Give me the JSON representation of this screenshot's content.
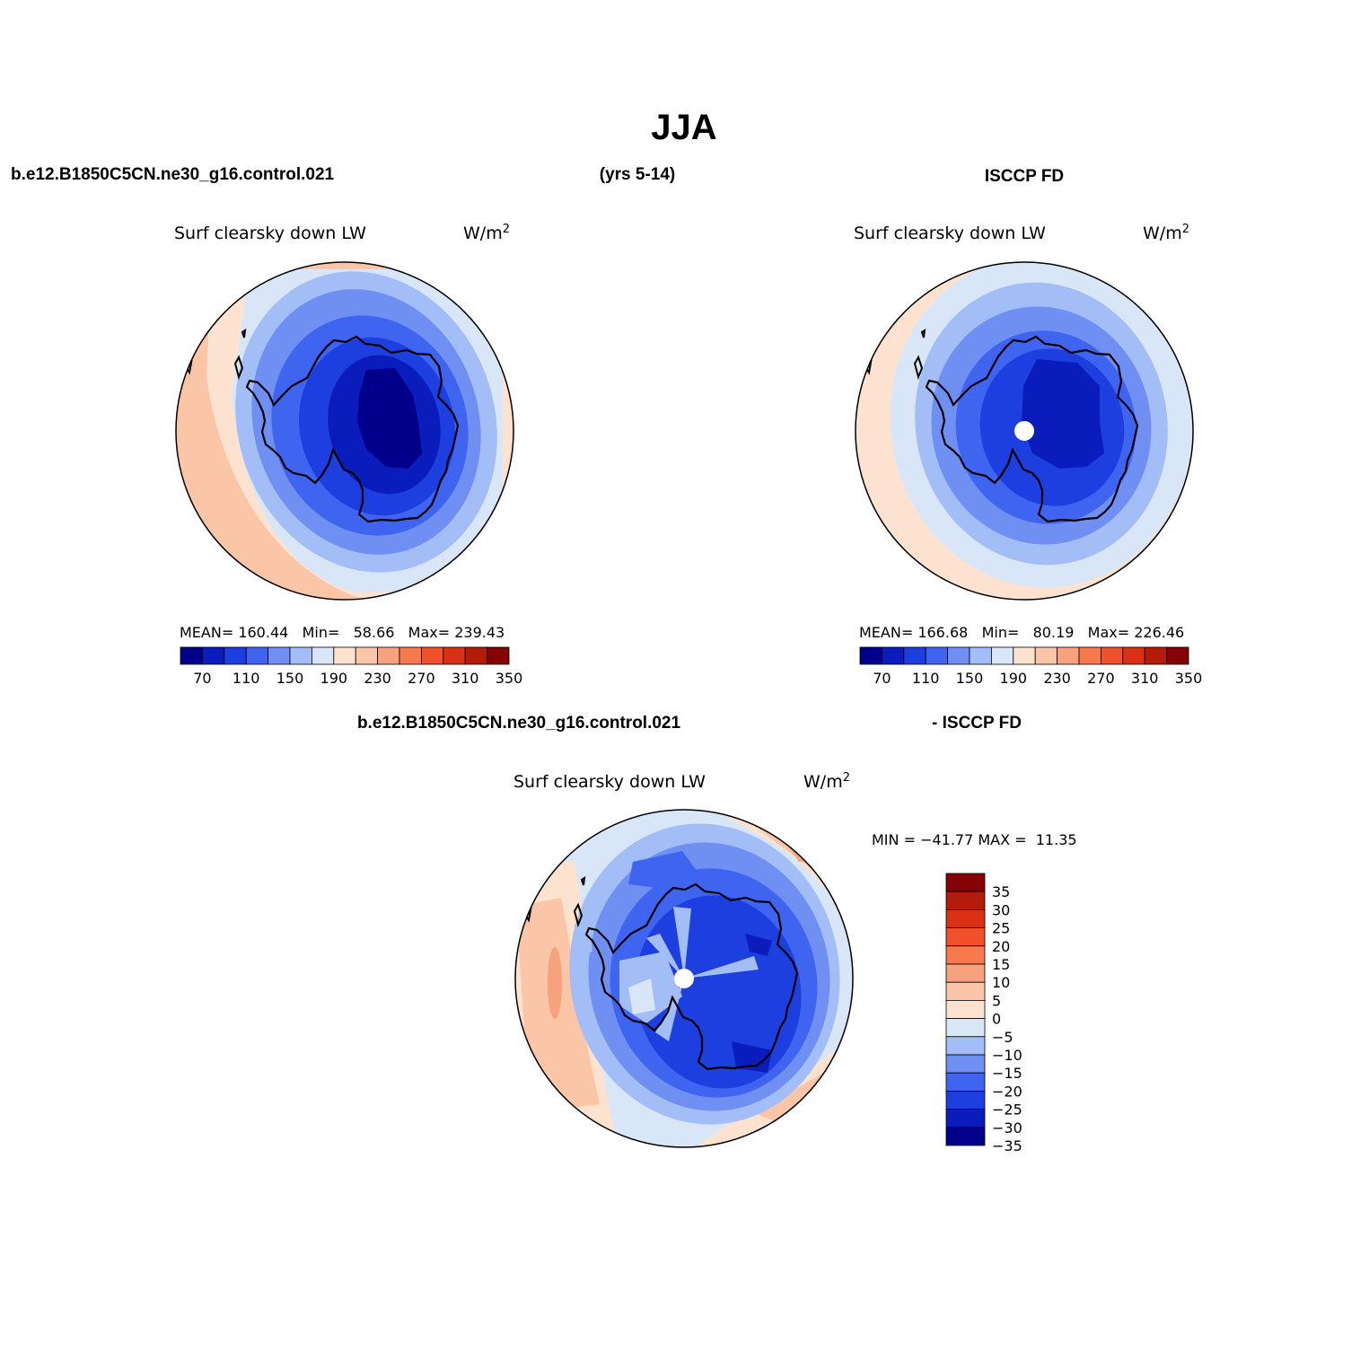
{
  "chart_data": {
    "type": "polar_contour_maps",
    "title": "JJA",
    "header": {
      "left": "b.e12.B1850C5CN.ne30_g16.control.021",
      "center": "(yrs 5-14)",
      "right": "ISCCP FD"
    },
    "diff_header": {
      "left": "b.e12.B1850C5CN.ne30_g16.control.021",
      "right": "- ISCCP FD"
    },
    "panels": [
      {
        "id": "model",
        "variable": "Surf clearsky down LW",
        "units": "W/m",
        "units_exponent": "2",
        "stats_text": "MEAN= 160.44   Min=   58.66   Max= 239.43",
        "stats": {
          "mean": 160.44,
          "min": 58.66,
          "max": 239.43
        }
      },
      {
        "id": "obs",
        "variable": "Surf clearsky down LW",
        "units": "W/m",
        "units_exponent": "2",
        "stats_text": "MEAN= 166.68   Min=   80.19   Max= 226.46",
        "stats": {
          "mean": 166.68,
          "min": 80.19,
          "max": 226.46
        }
      },
      {
        "id": "diff",
        "variable": "Surf clearsky down LW",
        "units": "W/m",
        "units_exponent": "2",
        "stats_text": "MIN = −41.77 MAX =  11.35",
        "stats": {
          "min": -41.77,
          "max": 11.35
        }
      }
    ],
    "colorbar_main": {
      "levels": [
        70,
        90,
        110,
        130,
        150,
        170,
        190,
        210,
        230,
        250,
        270,
        290,
        310,
        330,
        350
      ],
      "labels": [
        "70",
        "110",
        "150",
        "190",
        "230",
        "270",
        "310",
        "350"
      ],
      "colors": [
        "#00008a",
        "#0a1dbc",
        "#1d3fe0",
        "#3f65f0",
        "#6f8ff2",
        "#a3bdf7",
        "#d8e6f8",
        "#fde3cf",
        "#fbc5a7",
        "#f8a17f",
        "#f77a4f",
        "#f0512a",
        "#da3014",
        "#b31b0a",
        "#850305"
      ]
    },
    "colorbar_diff": {
      "levels": [
        35,
        30,
        25,
        20,
        15,
        10,
        5,
        0,
        -5,
        -10,
        -15,
        -20,
        -25,
        -30,
        -35
      ],
      "labels": [
        "35",
        "30",
        "25",
        "20",
        "15",
        "10",
        "5",
        "0",
        "−5",
        "−10",
        "−15",
        "−20",
        "−25",
        "−30",
        "−35"
      ],
      "colors": [
        "#850305",
        "#b31b0a",
        "#da3014",
        "#f0512a",
        "#f77a4f",
        "#f8a17f",
        "#fbc5a7",
        "#fde3cf",
        "#d8e6f8",
        "#a3bdf7",
        "#6f8ff2",
        "#3f65f0",
        "#1d3fe0",
        "#0a1dbc",
        "#00008a"
      ]
    }
  }
}
